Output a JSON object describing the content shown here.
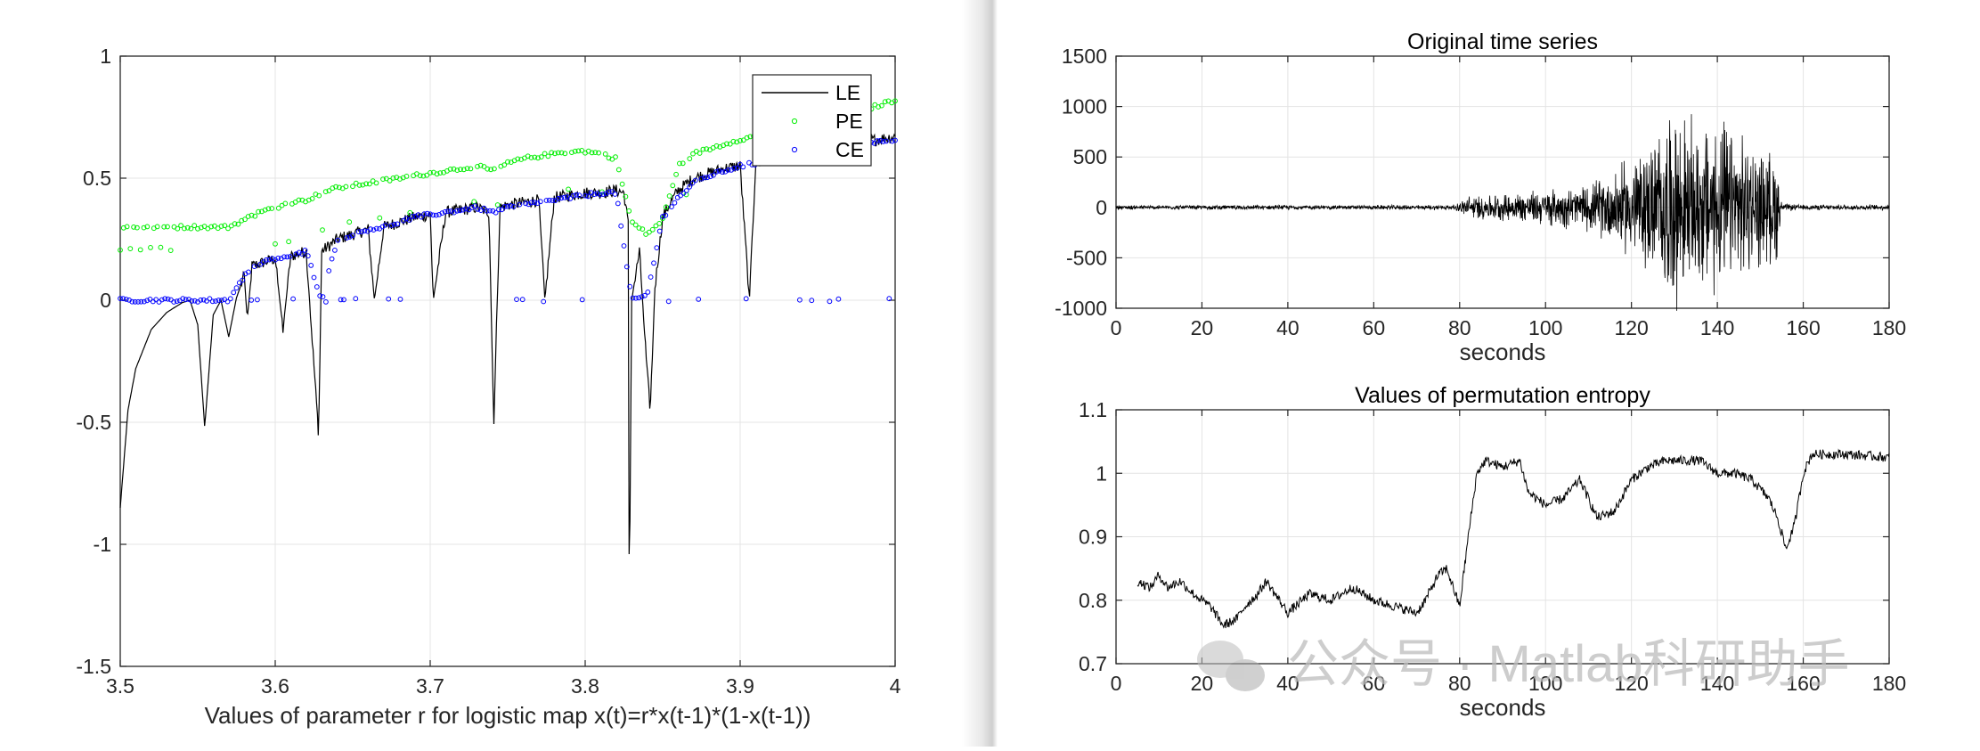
{
  "charts": {
    "left": {
      "type": "line",
      "xlim": [
        3.5,
        4
      ],
      "ylim": [
        -1.5,
        1
      ],
      "xticks": [
        "3.5",
        "3.6",
        "3.7",
        "3.8",
        "3.9",
        "4"
      ],
      "yticks": [
        "1",
        "0.5",
        "0",
        "-0.5",
        "-1",
        "-1.5"
      ],
      "xlabel": "Values of parameter r for logistic map x(t)=r*x(t-1)*(1-x(t-1))",
      "legend": [
        "LE",
        "PE",
        "CE"
      ],
      "legend_position": "top-right",
      "grid": true,
      "series_colors": {
        "LE": "#000000",
        "PE": "#00ee00",
        "CE": "#0000ff"
      }
    },
    "right_top": {
      "title": "Original time series",
      "xlabel": "seconds",
      "xlim": [
        0,
        180
      ],
      "ylim": [
        -1000,
        1500
      ],
      "xticks": [
        "0",
        "20",
        "40",
        "60",
        "80",
        "100",
        "120",
        "140",
        "160",
        "180"
      ],
      "yticks": [
        "1500",
        "1000",
        "500",
        "0",
        "-500",
        "-1000"
      ]
    },
    "right_bottom": {
      "title": "Values of permutation entropy",
      "xlabel": "seconds",
      "xlim": [
        0,
        180
      ],
      "ylim": [
        0.7,
        1.1
      ],
      "xticks": [
        "0",
        "20",
        "40",
        "60",
        "80",
        "100",
        "120",
        "140",
        "160",
        "180"
      ],
      "yticks": [
        "1.1",
        "1",
        "0.9",
        "0.8",
        "0.7"
      ]
    }
  },
  "watermark": "公众号 · Matlab科研助手",
  "chart_data": [
    {
      "type": "line",
      "title": "",
      "xlabel": "Values of parameter r for logistic map x(t)=r*x(t-1)*(1-x(t-1))",
      "ylabel": "",
      "xlim": [
        3.5,
        4
      ],
      "ylim": [
        -1.5,
        1
      ],
      "grid": true,
      "legend_position": "top-right",
      "series": [
        {
          "name": "LE",
          "style": "line",
          "x": [
            3.5,
            3.505,
            3.51,
            3.52,
            3.53,
            3.54,
            3.545,
            3.55,
            3.5545,
            3.56,
            3.565,
            3.57,
            3.575,
            3.58,
            3.582,
            3.585,
            3.59,
            3.6,
            3.605,
            3.61,
            3.62,
            3.628,
            3.63,
            3.64,
            3.65,
            3.66,
            3.664,
            3.67,
            3.68,
            3.69,
            3.7,
            3.702,
            3.71,
            3.72,
            3.73,
            3.738,
            3.741,
            3.745,
            3.75,
            3.76,
            3.77,
            3.774,
            3.78,
            3.79,
            3.8,
            3.81,
            3.82,
            3.825,
            3.828,
            3.8284,
            3.83,
            3.835,
            3.84,
            3.842,
            3.845,
            3.85,
            3.855,
            3.86,
            3.87,
            3.88,
            3.89,
            3.9,
            3.906,
            3.91,
            3.92,
            3.93,
            3.94,
            3.95,
            3.96,
            3.97,
            3.98,
            3.99,
            4.0
          ],
          "y": [
            -0.85,
            -0.45,
            -0.28,
            -0.12,
            -0.05,
            -0.01,
            0.0,
            -0.1,
            -0.52,
            -0.06,
            0.0,
            -0.15,
            0.01,
            0.1,
            -0.08,
            0.14,
            0.15,
            0.17,
            -0.12,
            0.18,
            0.2,
            -0.55,
            0.2,
            0.25,
            0.27,
            0.29,
            0.0,
            0.3,
            0.32,
            0.34,
            0.35,
            0.0,
            0.36,
            0.37,
            0.38,
            0.36,
            -0.51,
            0.38,
            0.39,
            0.4,
            0.41,
            0.0,
            0.42,
            0.43,
            0.44,
            0.44,
            0.45,
            0.44,
            0.3,
            -1.3,
            0.0,
            0.2,
            -0.3,
            -0.45,
            0.05,
            0.34,
            0.4,
            0.45,
            0.5,
            0.52,
            0.54,
            0.55,
            0.0,
            0.56,
            0.58,
            0.59,
            0.6,
            0.62,
            0.63,
            0.64,
            0.65,
            0.66,
            0.67
          ]
        },
        {
          "name": "PE",
          "style": "markers",
          "x": [
            3.5,
            3.51,
            3.52,
            3.53,
            3.54,
            3.55,
            3.56,
            3.57,
            3.58,
            3.59,
            3.6,
            3.61,
            3.62,
            3.63,
            3.64,
            3.65,
            3.66,
            3.67,
            3.68,
            3.69,
            3.7,
            3.71,
            3.72,
            3.73,
            3.74,
            3.75,
            3.76,
            3.77,
            3.78,
            3.79,
            3.8,
            3.81,
            3.82,
            3.83,
            3.84,
            3.85,
            3.86,
            3.87,
            3.88,
            3.89,
            3.9,
            3.91,
            3.92,
            3.93,
            3.94,
            3.95,
            3.96,
            3.97,
            3.98,
            3.99,
            4.0
          ],
          "y": [
            0.3,
            0.3,
            0.3,
            0.3,
            0.3,
            0.3,
            0.3,
            0.3,
            0.33,
            0.36,
            0.38,
            0.4,
            0.41,
            0.44,
            0.46,
            0.47,
            0.48,
            0.49,
            0.5,
            0.51,
            0.52,
            0.53,
            0.54,
            0.55,
            0.53,
            0.56,
            0.58,
            0.59,
            0.6,
            0.61,
            0.61,
            0.6,
            0.58,
            0.32,
            0.27,
            0.33,
            0.55,
            0.6,
            0.62,
            0.64,
            0.66,
            0.67,
            0.69,
            0.7,
            0.72,
            0.73,
            0.74,
            0.76,
            0.78,
            0.8,
            0.82
          ]
        },
        {
          "name": "CE",
          "style": "markers",
          "x": [
            3.5,
            3.52,
            3.54,
            3.56,
            3.57,
            3.58,
            3.59,
            3.6,
            3.61,
            3.62,
            3.63,
            3.64,
            3.65,
            3.66,
            3.67,
            3.68,
            3.69,
            3.7,
            3.71,
            3.72,
            3.73,
            3.74,
            3.75,
            3.76,
            3.77,
            3.78,
            3.79,
            3.8,
            3.81,
            3.82,
            3.83,
            3.84,
            3.85,
            3.86,
            3.87,
            3.88,
            3.89,
            3.9,
            3.91,
            3.92,
            3.93,
            3.94,
            3.95,
            3.96,
            3.97,
            3.98,
            3.99,
            4.0
          ],
          "y": [
            0.0,
            0.0,
            0.0,
            0.0,
            0.0,
            0.1,
            0.15,
            0.17,
            0.18,
            0.2,
            0.0,
            0.25,
            0.27,
            0.29,
            0.3,
            0.32,
            0.34,
            0.35,
            0.36,
            0.37,
            0.38,
            0.36,
            0.38,
            0.39,
            0.4,
            0.41,
            0.42,
            0.43,
            0.44,
            0.44,
            0.0,
            0.02,
            0.34,
            0.42,
            0.48,
            0.51,
            0.53,
            0.55,
            0.56,
            0.57,
            0.59,
            0.6,
            0.61,
            0.62,
            0.63,
            0.64,
            0.65,
            0.66
          ]
        }
      ]
    },
    {
      "type": "line",
      "title": "Original time series",
      "xlabel": "seconds",
      "ylabel": "",
      "xlim": [
        0,
        180
      ],
      "ylim": [
        -1000,
        1500
      ],
      "grid": true,
      "series": [
        {
          "x": [
            0,
            20,
            40,
            60,
            79,
            82,
            90,
            100,
            110,
            115,
            120,
            125,
            130,
            135,
            140,
            145,
            150,
            154,
            155,
            160,
            170,
            180
          ],
          "envelope": [
            25,
            25,
            25,
            25,
            30,
            130,
            150,
            200,
            250,
            400,
            560,
            750,
            1100,
            900,
            1000,
            800,
            650,
            600,
            40,
            30,
            30,
            30
          ]
        }
      ]
    },
    {
      "type": "line",
      "title": "Values of permutation entropy",
      "xlabel": "seconds",
      "ylabel": "",
      "xlim": [
        0,
        180
      ],
      "ylim": [
        0.7,
        1.1
      ],
      "grid": true,
      "series": [
        {
          "x": [
            5,
            8,
            10,
            12,
            15,
            18,
            20,
            22,
            25,
            28,
            30,
            33,
            35,
            38,
            40,
            45,
            50,
            55,
            60,
            65,
            70,
            72,
            75,
            77,
            78,
            80,
            82,
            84,
            86,
            90,
            94,
            96,
            100,
            104,
            108,
            112,
            116,
            120,
            124,
            128,
            132,
            136,
            140,
            144,
            148,
            152,
            154,
            156,
            158,
            160,
            162,
            170,
            180
          ],
          "y": [
            0.83,
            0.82,
            0.84,
            0.82,
            0.83,
            0.81,
            0.8,
            0.79,
            0.76,
            0.77,
            0.79,
            0.81,
            0.83,
            0.8,
            0.78,
            0.81,
            0.8,
            0.82,
            0.8,
            0.79,
            0.78,
            0.8,
            0.84,
            0.85,
            0.83,
            0.79,
            0.9,
            1.0,
            1.02,
            1.01,
            1.02,
            0.97,
            0.95,
            0.96,
            0.99,
            0.93,
            0.94,
            0.99,
            1.01,
            1.02,
            1.02,
            1.02,
            1.0,
            1.0,
            0.99,
            0.96,
            0.93,
            0.88,
            0.92,
            1.0,
            1.03,
            1.03,
            1.025
          ]
        }
      ]
    }
  ]
}
